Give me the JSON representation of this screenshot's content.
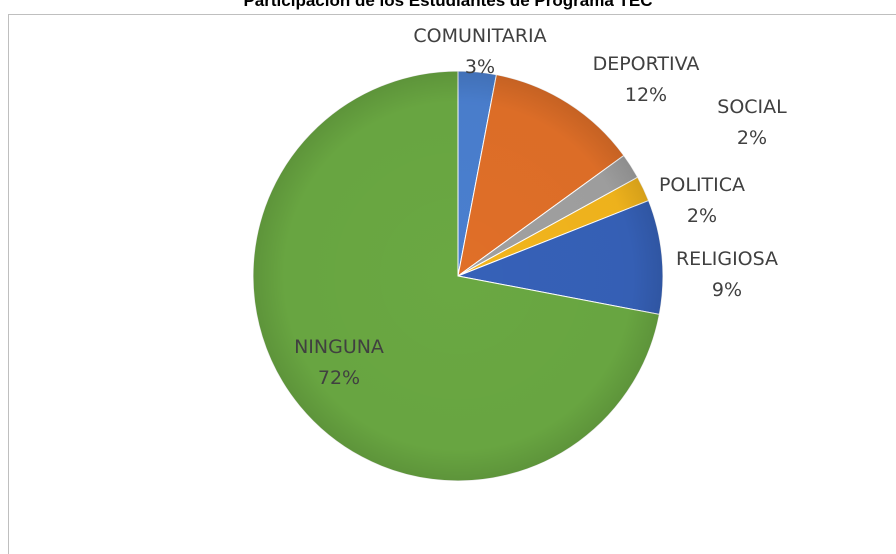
{
  "chart_data": {
    "type": "pie",
    "title": "Participación de los Estudiantes de Programa TEC",
    "slices": [
      {
        "label": "COMUNITARIA",
        "value": 3,
        "value_label": "3%",
        "color": "#4A7FCF"
      },
      {
        "label": "DEPORTIVA",
        "value": 12,
        "value_label": "12%",
        "color": "#E06F28"
      },
      {
        "label": "SOCIAL",
        "value": 2,
        "value_label": "2%",
        "color": "#A0A0A0"
      },
      {
        "label": "POLITICA",
        "value": 2,
        "value_label": "2%",
        "color": "#F2B51D"
      },
      {
        "label": "RELIGIOSA",
        "value": 9,
        "value_label": "9%",
        "color": "#3661B8"
      },
      {
        "label": "NINGUNA",
        "value": 72,
        "value_label": "72%",
        "color": "#6AA842"
      }
    ],
    "start": "12 o'clock, clockwise"
  }
}
